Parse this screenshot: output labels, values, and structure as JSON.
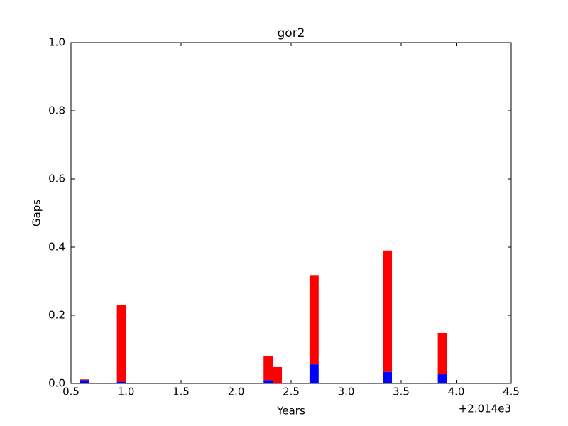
{
  "chart_data": {
    "type": "stacked_bar",
    "title": "gor2",
    "x_label": "Years",
    "y_label": "Gaps",
    "x_offset_label": "+2.014e3",
    "x": [
      0.583,
      0.833,
      0.917,
      1.167,
      1.417,
      2.167,
      2.25,
      2.333,
      2.667,
      3.333,
      3.667,
      3.833
    ],
    "bar_width": 0.0833,
    "series": [
      {
        "name": "blue",
        "color": "#0000ff",
        "values": [
          0.01,
          0,
          0.005,
          0,
          0,
          0,
          0.01,
          0,
          0.056,
          0.034,
          0,
          0.027
        ]
      },
      {
        "name": "red",
        "color": "#ff0000",
        "values": [
          0.002,
          0.002,
          0.225,
          0.002,
          0.002,
          0.002,
          0.07,
          0.048,
          0.26,
          0.356,
          0.002,
          0.121
        ]
      }
    ],
    "xlim": [
      0.5,
      4.5
    ],
    "xticks": [
      0.5,
      {
        "value": 1.0,
        "label": "1.0"
      },
      1.5,
      {
        "value": 2.0,
        "label": "2.0"
      },
      2.5,
      {
        "value": 3.0,
        "label": "3.0"
      },
      3.5,
      {
        "value": 4.0,
        "label": "4.0"
      },
      4.5
    ],
    "ylim": [
      0,
      1
    ],
    "yticks": [
      {
        "value": 0,
        "label": "0.0"
      },
      0.2,
      0.4,
      0.6,
      0.8,
      {
        "value": 1,
        "label": "1.0"
      }
    ]
  }
}
